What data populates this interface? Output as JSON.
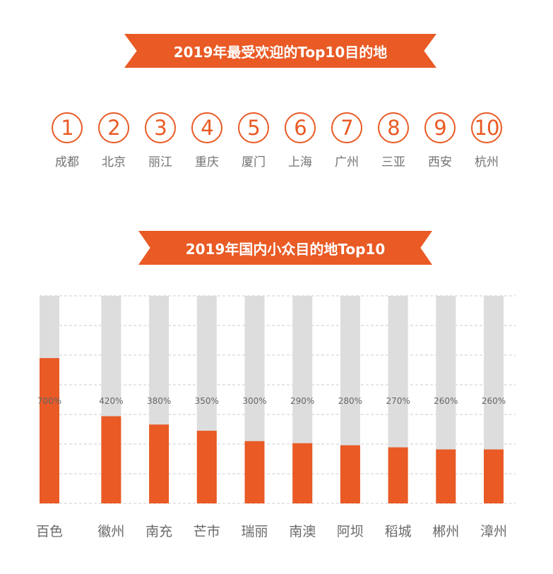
{
  "section1": {
    "title": "2019年最受欢迎的Top10目的地",
    "ranks": [
      {
        "num": "1",
        "city": "成都"
      },
      {
        "num": "2",
        "city": "北京"
      },
      {
        "num": "3",
        "city": "丽江"
      },
      {
        "num": "4",
        "city": "重庆"
      },
      {
        "num": "5",
        "city": "厦门"
      },
      {
        "num": "6",
        "city": "上海"
      },
      {
        "num": "7",
        "city": "广州"
      },
      {
        "num": "8",
        "city": "三亚"
      },
      {
        "num": "9",
        "city": "西安"
      },
      {
        "num": "10",
        "city": "杭州"
      }
    ]
  },
  "section2": {
    "title": "2019年国内小众目的地Top10"
  },
  "colors": {
    "accent": "#e95a25",
    "bar_bg": "#dddddd",
    "grid": "#cccccc",
    "text": "#6e6e6e"
  },
  "chart_data": {
    "type": "bar",
    "categories": [
      "百色",
      "徽州",
      "南充",
      "芒市",
      "瑞丽",
      "南澳",
      "阿坝",
      "稻城",
      "郴州",
      "漳州"
    ],
    "values": [
      700,
      420,
      380,
      350,
      300,
      290,
      280,
      270,
      260,
      260
    ],
    "labels": [
      "700%",
      "420%",
      "380%",
      "350%",
      "300%",
      "290%",
      "280%",
      "270%",
      "260%",
      "260%"
    ],
    "ylim": [
      0,
      1000
    ],
    "grid": true
  }
}
